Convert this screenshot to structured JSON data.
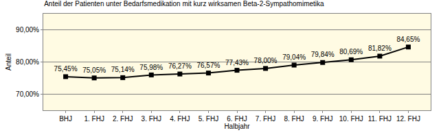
{
  "chart_data": {
    "type": "line",
    "title": "Anteil der Patienten unter Bedarfsmedikation mit kurz wirksamen Beta-2-Sympathomimetika",
    "x_label": "Halbjahr",
    "y_label": "Anteil",
    "categories": [
      "BHJ",
      "1. FHJ",
      "2. FHJ",
      "3. FHJ",
      "4. FHJ",
      "5. FHJ",
      "6. FHJ",
      "7. FHJ",
      "8. FHJ",
      "9. FHJ",
      "10. FHJ",
      "11. FHJ",
      "12. FHJ"
    ],
    "values": [
      75.45,
      75.05,
      75.14,
      75.98,
      76.27,
      76.57,
      77.43,
      78.0,
      79.04,
      79.84,
      80.69,
      81.82,
      84.65
    ],
    "value_labels": [
      "75,45%",
      "75,05%",
      "75,14%",
      "75,98%",
      "76,27%",
      "76,57%",
      "77,43%",
      "78,00%",
      "79,04%",
      "79,84%",
      "80,69%",
      "81,82%",
      "84,65%"
    ],
    "color": "#000000",
    "marker": "square",
    "line_style": "solid",
    "data_labels": true,
    "grid": true,
    "ylim": [
      65,
      95
    ],
    "yticks": [
      {
        "value": 70,
        "label": "70,00%"
      },
      {
        "value": 80,
        "label": "80,00%"
      },
      {
        "value": 90,
        "label": "90,00%"
      }
    ]
  }
}
